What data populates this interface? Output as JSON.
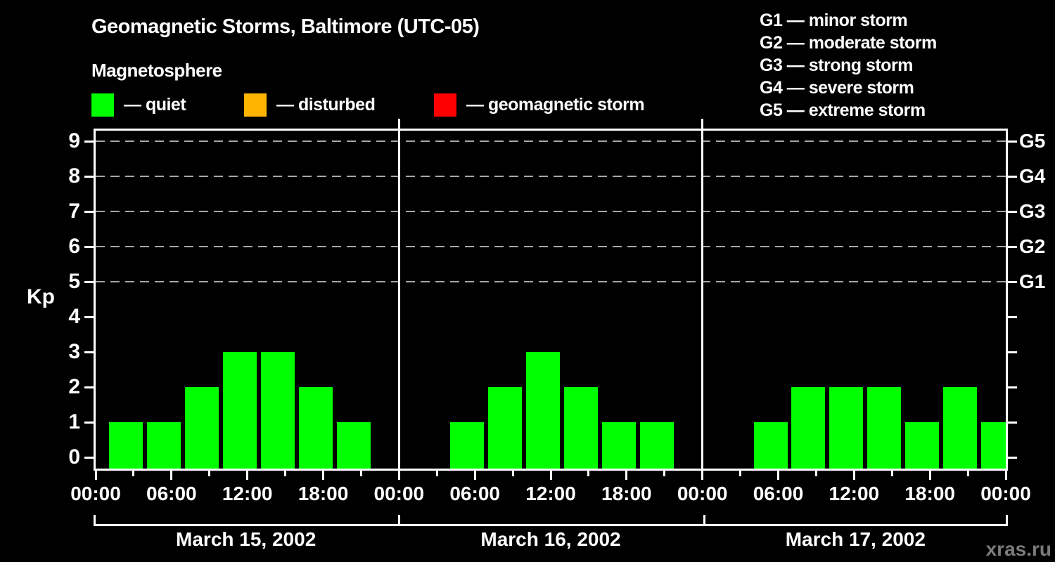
{
  "header": {
    "title": "Geomagnetic Storms, Baltimore (UTC-05)",
    "subtitle": "Magnetosphere"
  },
  "legend": {
    "items": [
      {
        "name": "quiet",
        "label": "— quiet",
        "color": "#00ff00"
      },
      {
        "name": "disturbed",
        "label": "— disturbed",
        "color": "#ffb400"
      },
      {
        "name": "geomagnetic-storm",
        "label": "— geomagnetic storm",
        "color": "#ff0000"
      }
    ]
  },
  "g_scale": {
    "items": [
      "G1 — minor storm",
      "G2 — moderate storm",
      "G3 — strong storm",
      "G4 — severe storm",
      "G5 — extreme storm"
    ]
  },
  "watermark": "xras.ru",
  "colors": {
    "background": "#000000",
    "axis": "#ffffff",
    "grid": "#a6a6a6",
    "quiet_bar": "#00ff00",
    "disturbed": "#ffb400",
    "storm": "#ff0000",
    "watermark": "#7b7b7b"
  },
  "chart_data": {
    "type": "bar",
    "title": "Geomagnetic Storms, Baltimore (UTC-05)",
    "xlabel": "",
    "ylabel": "Kp",
    "ylim": [
      0,
      9
    ],
    "y_ticks": [
      0,
      1,
      2,
      3,
      4,
      5,
      6,
      7,
      8,
      9
    ],
    "gridlines_kp": [
      5,
      6,
      7,
      8,
      9
    ],
    "grid": "dashed horizontal at G1–G5 levels only",
    "legend_position": "top",
    "right_axis_labels": [
      {
        "kp": 9,
        "label": "G5"
      },
      {
        "kp": 8,
        "label": "G4"
      },
      {
        "kp": 7,
        "label": "G3"
      },
      {
        "kp": 6,
        "label": "G2"
      },
      {
        "kp": 5,
        "label": "G1"
      }
    ],
    "x_tick_labels": [
      "00:00",
      "06:00",
      "12:00",
      "18:00",
      "00:00"
    ],
    "hours_per_bar": 3,
    "bar_color": "#00ff00",
    "panels": [
      {
        "date": "March 15, 2002",
        "kp_values": [
          1,
          1,
          2,
          3,
          3,
          2,
          1,
          null
        ]
      },
      {
        "date": "March 16, 2002",
        "kp_values": [
          null,
          1,
          2,
          3,
          2,
          1,
          1,
          null
        ]
      },
      {
        "date": "March 17, 2002",
        "kp_values": [
          null,
          1,
          2,
          2,
          2,
          1,
          2,
          1
        ]
      }
    ]
  }
}
